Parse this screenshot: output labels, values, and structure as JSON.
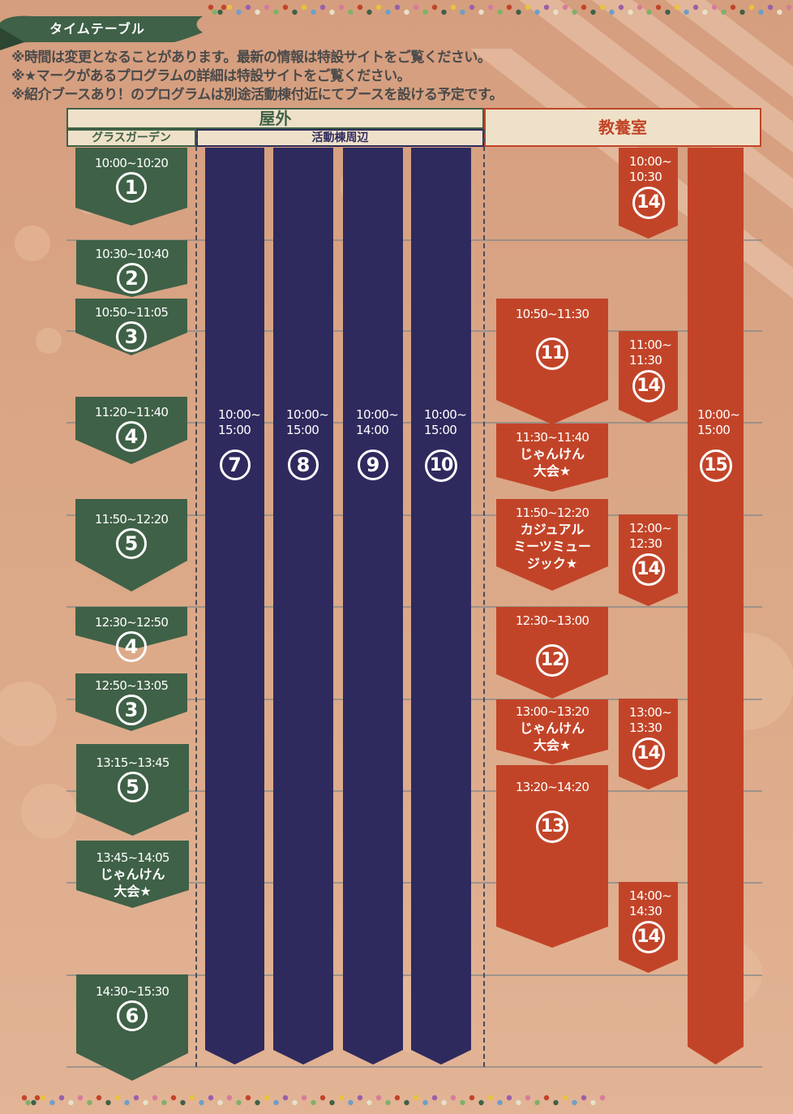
{
  "title": "タイムテーブル",
  "notes": [
    "※時間は変更となることがあります。最新の情報は特設サイトをご覧ください。",
    "※★マークがあるプログラムの詳細は特設サイトをご覧ください。",
    "※紹介ブースあり！のプログラムは別途活動棟付近にてブースを設ける予定です。"
  ],
  "headers": {
    "outdoor": "屋外",
    "grass_garden": "グラスガーデン",
    "activity_building": "活動棟周辺",
    "classroom": "教養室"
  },
  "colors": {
    "green": "#3f6147",
    "navy": "#2e2a5e",
    "red": "#c24428",
    "background": "#dfa883"
  },
  "grass_garden": [
    {
      "time": "10:00~10:20",
      "num": "1"
    },
    {
      "time": "10:30~10:40",
      "num": "2"
    },
    {
      "time": "10:50~11:05",
      "num": "3"
    },
    {
      "time": "11:20~11:40",
      "num": "4"
    },
    {
      "time": "11:50~12:20",
      "num": "5"
    },
    {
      "time": "12:30~12:50",
      "num": "4"
    },
    {
      "time": "12:50~13:05",
      "num": "3"
    },
    {
      "time": "13:15~13:45",
      "num": "5"
    },
    {
      "time": "13:45~14:05",
      "label": "じゃんけん\n大会★"
    },
    {
      "time": "14:30~15:30",
      "num": "6"
    }
  ],
  "activity": [
    {
      "time": "10:00~\n15:00",
      "num": "7"
    },
    {
      "time": "10:00~\n15:00",
      "num": "8"
    },
    {
      "time": "10:00~\n14:00",
      "num": "9"
    },
    {
      "time": "10:00~\n15:00",
      "num": "10"
    }
  ],
  "classroom_main": [
    {
      "time": "10:50~11:30",
      "num": "11"
    },
    {
      "time": "11:30~11:40",
      "label": "じゃんけん\n大会★"
    },
    {
      "time": "11:50~12:20",
      "label": "カジュアル\nミーツミュー\nジック★"
    },
    {
      "time": "12:30~13:00",
      "num": "12"
    },
    {
      "time": "13:00~13:20",
      "label": "じゃんけん\n大会★"
    },
    {
      "time": "13:20~14:20",
      "num": "13"
    }
  ],
  "classroom_side": [
    {
      "time": "10:00~\n10:30",
      "num": "14"
    },
    {
      "time": "11:00~\n11:30",
      "num": "14"
    },
    {
      "time": "12:00~\n12:30",
      "num": "14"
    },
    {
      "time": "13:00~\n13:30",
      "num": "14"
    },
    {
      "time": "14:00~\n14:30",
      "num": "14"
    }
  ],
  "classroom_full": {
    "time": "10:00~\n15:00",
    "num": "15"
  }
}
